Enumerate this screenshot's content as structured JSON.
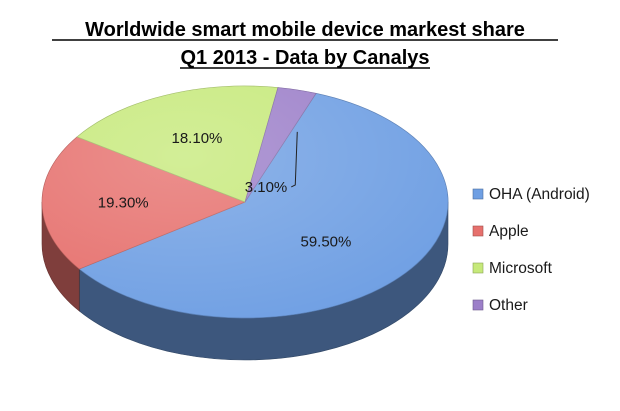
{
  "chart_data": {
    "type": "pie",
    "title": "Worldwide smart mobile device markest share",
    "subtitle": "Q1 2013 - Data by Canalys",
    "three_d": true,
    "legend_position": "right",
    "slices": [
      {
        "label": "OHA (Android)",
        "value": 59.5,
        "value_label": "59.50%",
        "color": "#6f9fe3"
      },
      {
        "label": "Apple",
        "value": 19.3,
        "value_label": "19.30%",
        "color": "#e6706d"
      },
      {
        "label": "Microsoft",
        "value": 18.1,
        "value_label": "18.10%",
        "color": "#c6e97a"
      },
      {
        "label": "Other",
        "value": 3.1,
        "value_label": "3.10%",
        "color": "#9c7fc9"
      }
    ]
  }
}
